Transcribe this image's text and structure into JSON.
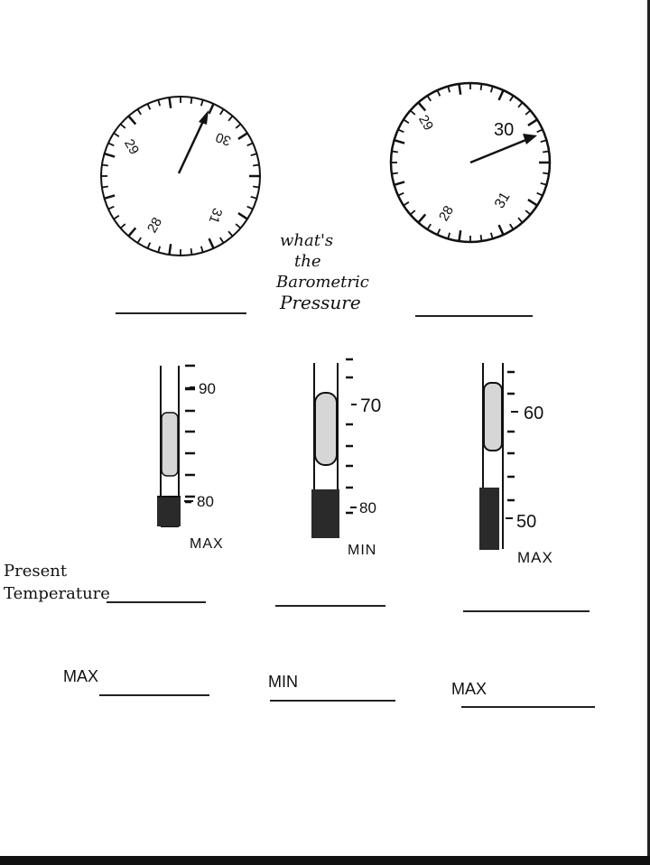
{
  "heading": {
    "line1": "what's",
    "line2": "the",
    "line3": "Barometric",
    "line4": "Pressure"
  },
  "barometers": [
    {
      "labels": [
        "29",
        "30",
        "28",
        "31"
      ],
      "reading": 29.8
    },
    {
      "labels": [
        "29",
        "30",
        "28",
        "31"
      ],
      "reading": 30.1
    }
  ],
  "thermometers": [
    {
      "labels": [
        "90",
        "80"
      ],
      "caption": "MAX"
    },
    {
      "labels": [
        "70",
        "80"
      ],
      "caption": "MIN"
    },
    {
      "labels": [
        "60",
        "50"
      ],
      "caption": "MAX"
    }
  ],
  "present_temperature": {
    "line1": "Present",
    "line2": "Temperature"
  },
  "answer_labels": [
    "MAX",
    "MIN",
    "MAX"
  ]
}
